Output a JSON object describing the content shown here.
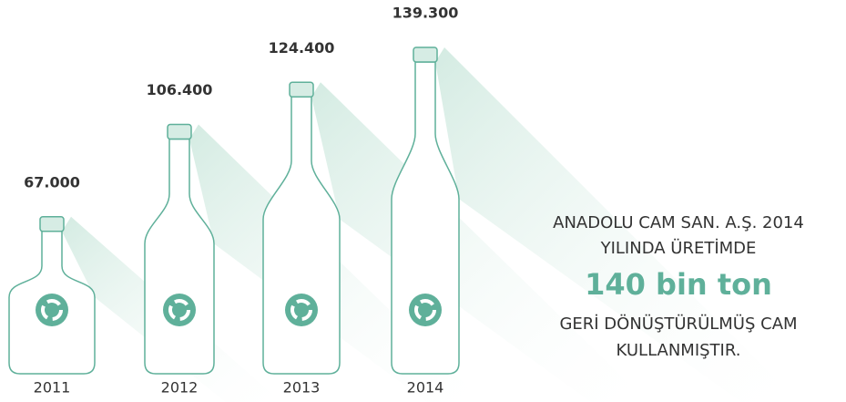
{
  "chart_data": {
    "type": "bottle",
    "categories": [
      "2011",
      "2012",
      "2013",
      "2014"
    ],
    "values": [
      67000,
      106400,
      124400,
      139300
    ],
    "value_labels": [
      "67.000",
      "106.400",
      "124.400",
      "139.300"
    ],
    "color": "#5fb09a",
    "annotations": [
      "ANADOLU CAM SAN. A.Ş. 2014",
      "YILINDA ÜRETİMDE",
      "140 bin ton",
      "GERİ DÖNÜŞTÜRÜLMÜŞ CAM",
      "KULLANMIŞTIR."
    ]
  }
}
